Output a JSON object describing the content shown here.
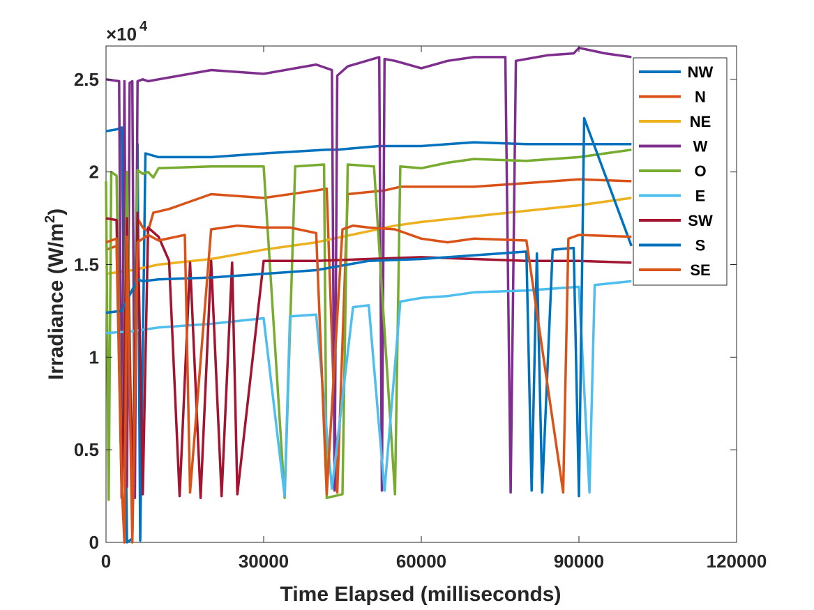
{
  "chart_data": {
    "type": "line",
    "xlabel": "Time Elapsed (milliseconds)",
    "ylabel_main": "Irradiance (W/m",
    "ylabel_sup": "2",
    "ylabel_close": ")",
    "y_multiplier": "×10",
    "y_multiplier_exp": "4",
    "xlim": [
      0,
      120000
    ],
    "ylim": [
      0,
      2.68
    ],
    "xticks": [
      0,
      30000,
      60000,
      90000,
      120000
    ],
    "xtick_labels": [
      "0",
      "30000",
      "60000",
      "90000",
      "120000"
    ],
    "yticks": [
      0,
      0.5,
      1,
      1.5,
      2,
      2.5
    ],
    "ytick_labels": [
      "0",
      "0.5",
      "1",
      "1.5",
      "2",
      "2.5"
    ],
    "grid": false,
    "legend_position": "top-right",
    "series": [
      {
        "name": "NW",
        "color": "#0072BD",
        "x": [
          0,
          2000,
          3000,
          4000,
          5000,
          6000,
          6500,
          7500,
          10000,
          20000,
          30000,
          42000,
          44000,
          52000,
          54000,
          60000,
          70000,
          80000,
          90000,
          100000
        ],
        "y": [
          2.22,
          2.23,
          2.24,
          0.0,
          0.02,
          2.15,
          0.01,
          2.1,
          2.08,
          2.08,
          2.1,
          2.12,
          2.12,
          2.14,
          2.14,
          2.14,
          2.16,
          2.15,
          2.15,
          2.15
        ]
      },
      {
        "name": "N",
        "color": "#D95319",
        "x": [
          0,
          2000,
          3000,
          4000,
          5000,
          6000,
          7000,
          8000,
          9000,
          12000,
          20000,
          30000,
          40000,
          42000,
          44000,
          46000,
          53000,
          56000,
          65000,
          70000,
          80000,
          90000,
          100000
        ],
        "y": [
          1.58,
          1.6,
          0.25,
          1.7,
          0.25,
          1.75,
          1.7,
          1.68,
          1.78,
          1.8,
          1.88,
          1.86,
          1.9,
          1.91,
          0.27,
          1.88,
          1.9,
          1.92,
          1.92,
          1.92,
          1.94,
          1.96,
          1.95
        ]
      },
      {
        "name": "NE",
        "color": "#EDB120",
        "x": [
          0,
          5000,
          10000,
          20000,
          30000,
          40000,
          45000,
          50000,
          55000,
          60000,
          70000,
          80000,
          90000,
          100000
        ],
        "y": [
          1.45,
          1.47,
          1.5,
          1.53,
          1.58,
          1.62,
          1.65,
          1.68,
          1.71,
          1.73,
          1.76,
          1.79,
          1.82,
          1.86
        ]
      },
      {
        "name": "W",
        "color": "#7E2F8E",
        "x": [
          0,
          2500,
          3000,
          3500,
          4000,
          4500,
          5000,
          5500,
          6000,
          7000,
          8000,
          10000,
          20000,
          30000,
          40000,
          43000,
          43500,
          44000,
          46000,
          52000,
          52500,
          53000,
          55000,
          60000,
          65000,
          70000,
          76000,
          77000,
          78000,
          84000,
          89000,
          90000,
          95000,
          100000
        ],
        "y": [
          2.5,
          2.49,
          0.24,
          2.49,
          0.3,
          2.48,
          2.49,
          0.24,
          2.49,
          2.5,
          2.49,
          2.5,
          2.55,
          2.53,
          2.58,
          2.55,
          0.28,
          2.52,
          2.57,
          2.62,
          0.28,
          2.61,
          2.6,
          2.56,
          2.6,
          2.62,
          2.62,
          0.27,
          2.6,
          2.63,
          2.64,
          2.67,
          2.64,
          2.62
        ]
      },
      {
        "name": "O",
        "color": "#77AC30",
        "x": [
          0,
          500,
          1000,
          2000,
          3000,
          4000,
          5000,
          6000,
          7000,
          8000,
          9000,
          10000,
          20000,
          30000,
          34000,
          36000,
          41500,
          42000,
          45000,
          46000,
          51000,
          55000,
          56000,
          60000,
          65000,
          70000,
          80000,
          90000,
          100000
        ],
        "y": [
          1.95,
          0.23,
          2.0,
          1.98,
          0.24,
          2.0,
          0.24,
          2.01,
          1.99,
          2.0,
          1.97,
          2.02,
          2.03,
          2.03,
          0.24,
          2.03,
          2.04,
          0.24,
          0.26,
          2.04,
          2.03,
          0.26,
          2.03,
          2.02,
          2.05,
          2.07,
          2.06,
          2.08,
          2.12
        ]
      },
      {
        "name": "E",
        "color": "#4DBEEE",
        "x": [
          0,
          5000,
          10000,
          20000,
          30000,
          34000,
          35000,
          40000,
          43000,
          47000,
          50000,
          53000,
          56000,
          60000,
          65000,
          70000,
          80000,
          90000,
          92000,
          93000,
          100000
        ],
        "y": [
          1.13,
          1.14,
          1.16,
          1.18,
          1.21,
          0.25,
          1.22,
          1.23,
          0.29,
          1.27,
          1.28,
          0.28,
          1.3,
          1.32,
          1.33,
          1.35,
          1.36,
          1.38,
          0.27,
          1.39,
          1.41
        ]
      },
      {
        "name": "SW",
        "color": "#A2142F",
        "x": [
          0,
          2000,
          3000,
          4000,
          5000,
          6000,
          7000,
          8000,
          10000,
          12000,
          14000,
          16000,
          18000,
          20000,
          22000,
          24000,
          25000,
          30000,
          35000,
          40000,
          50000,
          60000,
          70000,
          80000,
          90000,
          100000
        ],
        "y": [
          1.75,
          1.74,
          0.24,
          1.75,
          0.26,
          1.78,
          0.26,
          1.7,
          1.65,
          1.52,
          0.25,
          1.51,
          0.24,
          1.52,
          0.25,
          1.51,
          0.26,
          1.52,
          1.52,
          1.52,
          1.53,
          1.54,
          1.53,
          1.52,
          1.52,
          1.51
        ]
      },
      {
        "name": "S",
        "color": "#0072BD",
        "x": [
          0,
          3000,
          6000,
          7000,
          10000,
          20000,
          30000,
          40000,
          50000,
          60000,
          70000,
          80000,
          81000,
          82000,
          83000,
          85000,
          89000,
          90000,
          91000,
          100000
        ],
        "y": [
          1.24,
          1.25,
          1.42,
          1.41,
          1.42,
          1.43,
          1.45,
          1.47,
          1.52,
          1.53,
          1.55,
          1.57,
          0.28,
          1.56,
          0.27,
          1.58,
          1.59,
          0.25,
          2.29,
          1.6
        ]
      },
      {
        "name": "SE",
        "color": "#D95319",
        "x": [
          0,
          2000,
          3000,
          3500,
          4000,
          5000,
          6000,
          8000,
          10000,
          15000,
          16000,
          20000,
          25000,
          30000,
          35000,
          40000,
          42000,
          45000,
          47000,
          50000,
          55000,
          60000,
          65000,
          70000,
          80000,
          87000,
          88000,
          90000,
          100000
        ],
        "y": [
          1.62,
          1.64,
          0.3,
          0.0,
          1.65,
          0.0,
          1.62,
          1.66,
          1.63,
          1.66,
          0.27,
          1.69,
          1.71,
          1.7,
          1.7,
          1.67,
          0.26,
          1.69,
          1.71,
          1.7,
          1.69,
          1.64,
          1.62,
          1.64,
          1.63,
          0.27,
          1.64,
          1.66,
          1.65
        ]
      }
    ]
  }
}
